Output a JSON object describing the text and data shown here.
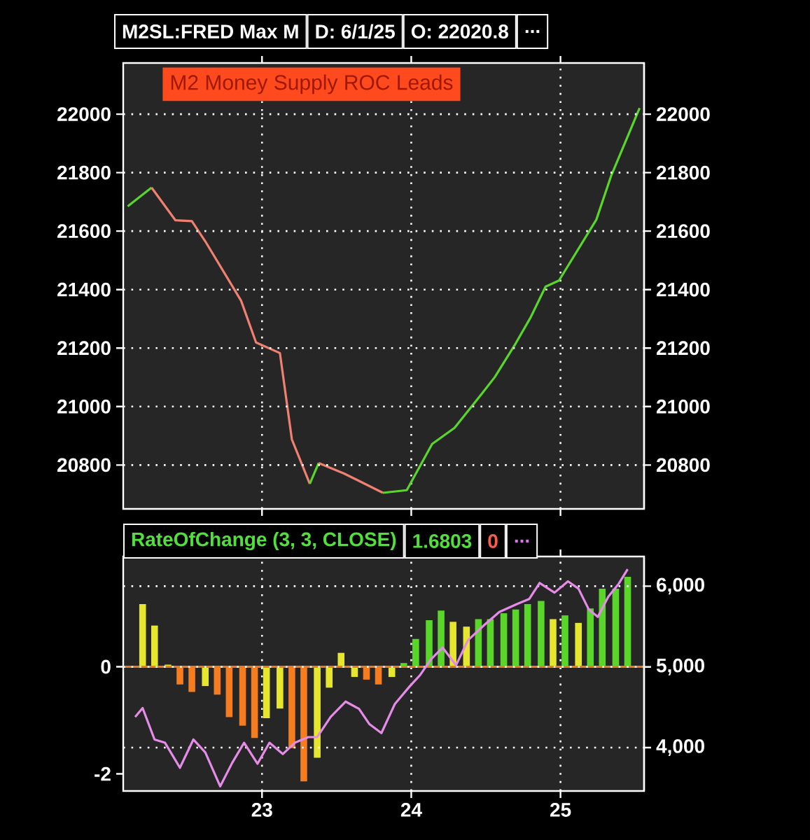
{
  "chart_data": [
    {
      "type": "line",
      "title": "M2SL:FRED Max M",
      "annotations": [
        "D: 6/1/25",
        "O: 22020.8",
        "...",
        "M2 Money Supply ROC Leads"
      ],
      "xlim": [
        2022.07,
        2025.56
      ],
      "xticks": [
        {
          "value": 2023,
          "label": null
        },
        {
          "value": 2024,
          "label": null
        },
        {
          "value": 2025,
          "label": null
        }
      ],
      "ylim": [
        20650,
        22175
      ],
      "yticks": [
        20800,
        21000,
        21200,
        21400,
        21600,
        21800,
        22000
      ],
      "y2lim": [
        20650,
        22175
      ],
      "y2ticks": [
        20800,
        21000,
        21200,
        21400,
        21600,
        21800,
        22000
      ],
      "tick_labels": "y",
      "grid": true,
      "series": [
        {
          "color": "#5ad62a",
          "x": [
            2022.1,
            2022.26
          ],
          "values": [
            21685,
            21749
          ]
        },
        {
          "color": "#f08070",
          "x": [
            2022.26,
            2022.42,
            2022.53,
            2022.62,
            2022.86,
            2022.96,
            2023.12,
            2023.2,
            2023.32
          ],
          "values": [
            21749,
            21637,
            21634,
            21565,
            21362,
            21219,
            21183,
            20888,
            20736
          ]
        },
        {
          "color": "#5ad62a",
          "x": [
            2023.32,
            2023.38
          ],
          "values": [
            20736,
            20807
          ]
        },
        {
          "color": "#f08070",
          "x": [
            2023.38,
            2023.55,
            2023.81
          ],
          "values": [
            20807,
            20771,
            20705
          ]
        },
        {
          "color": "#5ad62a",
          "x": [
            2023.81,
            2023.97,
            2024.14,
            2024.29,
            2024.47,
            2024.56,
            2024.7,
            2024.8,
            2024.9,
            2024.99,
            2025.24,
            2025.34,
            2025.53
          ],
          "values": [
            20705,
            20714,
            20872,
            20927,
            21042,
            21101,
            21216,
            21305,
            21410,
            21431,
            21639,
            21790,
            22021
          ]
        }
      ]
    },
    {
      "type": "bar",
      "title": "RateOfChange (3, 3, CLOSE)",
      "annotations": [
        "1.6803",
        "0",
        "..."
      ],
      "xlim": [
        2022.07,
        2025.56
      ],
      "xticks": [
        {
          "value": 2023,
          "label": "23"
        },
        {
          "value": 2024,
          "label": "24"
        },
        {
          "value": 2025,
          "label": "25"
        }
      ],
      "ylim": [
        -2.32,
        2.06
      ],
      "yticks": [
        -2,
        0
      ],
      "y2lim": [
        3462,
        6368
      ],
      "y2ticks": [
        {
          "value": 4000,
          "label": "4,000"
        },
        {
          "value": 5000,
          "label": "5,000"
        },
        {
          "value": 6000,
          "label": "6,000"
        }
      ],
      "grid": true,
      "ref_lines": [
        {
          "axis": "y",
          "value": 0,
          "color": "#f07a1e"
        }
      ],
      "series": [
        {
          "type": "bar",
          "x": [
            2022.2,
            2022.28,
            2022.37,
            2022.45,
            2022.53,
            2022.62,
            2022.7,
            2022.78,
            2022.87,
            2022.95,
            2023.03,
            2023.12,
            2023.2,
            2023.28,
            2023.37,
            2023.45,
            2023.53,
            2023.62,
            2023.7,
            2023.78,
            2023.87,
            2023.95,
            2024.03,
            2024.12,
            2024.2,
            2024.28,
            2024.37,
            2024.45,
            2024.53,
            2024.62,
            2024.7,
            2024.78,
            2024.87,
            2024.95,
            2025.03,
            2025.12,
            2025.2,
            2025.28,
            2025.37,
            2025.45
          ],
          "values": [
            1.17,
            0.77,
            0.04,
            -0.33,
            -0.47,
            -0.36,
            -0.52,
            -0.94,
            -1.1,
            -1.33,
            -0.96,
            -0.78,
            -1.52,
            -2.14,
            -1.7,
            -0.39,
            0.26,
            -0.19,
            -0.24,
            -0.33,
            -0.19,
            0.07,
            0.52,
            0.87,
            1.05,
            0.84,
            0.75,
            0.89,
            0.89,
            1.0,
            1.07,
            1.17,
            1.23,
            0.89,
            0.96,
            0.82,
            1.09,
            1.46,
            1.46,
            1.68
          ],
          "colors": [
            "#e6e62e",
            "#e6e62e",
            "#e6e62e",
            "#f57d20",
            "#f57d20",
            "#e6e62e",
            "#f57d20",
            "#f57d20",
            "#f57d20",
            "#f57d20",
            "#e6e62e",
            "#e6e62e",
            "#f57d20",
            "#f57d20",
            "#e6e62e",
            "#e6e62e",
            "#e6e62e",
            "#e6e62e",
            "#f57d20",
            "#f57d20",
            "#e6e62e",
            "#5ad62a",
            "#5ad62a",
            "#5ad62a",
            "#5ad62a",
            "#e6e62e",
            "#e6e62e",
            "#5ad62a",
            "#5ad62a",
            "#5ad62a",
            "#5ad62a",
            "#5ad62a",
            "#5ad62a",
            "#e6e62e",
            "#5ad62a",
            "#e6e62e",
            "#5ad62a",
            "#5ad62a",
            "#5ad62a",
            "#5ad62a"
          ]
        },
        {
          "type": "line",
          "axis": "y2",
          "color": "#e58ce8",
          "x": [
            2022.15,
            2022.2,
            2022.28,
            2022.35,
            2022.45,
            2022.54,
            2022.62,
            2022.72,
            2022.8,
            2022.88,
            2022.97,
            2023.05,
            2023.14,
            2023.22,
            2023.31,
            2023.37,
            2023.46,
            2023.56,
            2023.65,
            2023.72,
            2023.8,
            2023.89,
            2023.99,
            2024.06,
            2024.13,
            2024.21,
            2024.3,
            2024.38,
            2024.49,
            2024.59,
            2024.71,
            2024.79,
            2024.86,
            2024.96,
            2025.05,
            2025.12,
            2025.19,
            2025.25,
            2025.32,
            2025.39,
            2025.45
          ],
          "values": [
            4380,
            4490,
            4100,
            4060,
            3750,
            4100,
            3940,
            3520,
            3810,
            4060,
            3800,
            4060,
            3920,
            4060,
            4130,
            4130,
            4380,
            4570,
            4480,
            4290,
            4180,
            4540,
            4760,
            4900,
            5090,
            5240,
            5020,
            5330,
            5520,
            5680,
            5780,
            5840,
            6040,
            5920,
            6060,
            5970,
            5710,
            5620,
            5870,
            6030,
            6210
          ]
        }
      ]
    }
  ]
}
